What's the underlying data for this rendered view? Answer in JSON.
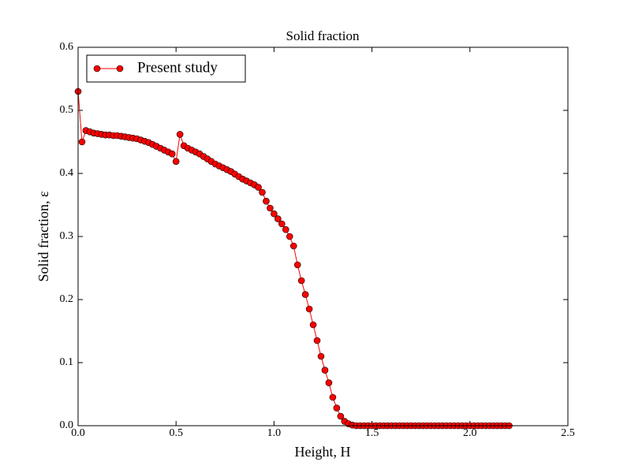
{
  "chart_data": {
    "type": "line",
    "title": "Solid fraction",
    "x_label": "Height, H",
    "y_label": "Solid fraction, ε",
    "x": [
      0,
      0.02,
      0.04,
      0.06,
      0.08,
      0.1,
      0.12,
      0.14,
      0.16,
      0.18,
      0.2,
      0.22,
      0.24,
      0.26,
      0.28,
      0.3,
      0.32,
      0.34,
      0.36,
      0.38,
      0.4,
      0.42,
      0.44,
      0.46,
      0.48,
      0.5,
      0.52,
      0.54,
      0.56,
      0.58,
      0.6,
      0.62,
      0.64,
      0.66,
      0.68,
      0.7,
      0.72,
      0.74,
      0.76,
      0.78,
      0.8,
      0.82,
      0.84,
      0.86,
      0.88,
      0.9,
      0.92,
      0.94,
      0.96,
      0.98,
      1,
      1.02,
      1.04,
      1.06,
      1.08,
      1.1,
      1.12,
      1.14,
      1.16,
      1.18,
      1.2,
      1.22,
      1.24,
      1.26,
      1.28,
      1.3,
      1.32,
      1.34,
      1.36,
      1.38,
      1.4,
      1.42,
      1.44,
      1.46,
      1.48,
      1.5,
      1.52,
      1.54,
      1.56,
      1.58,
      1.6,
      1.62,
      1.64,
      1.66,
      1.68,
      1.7,
      1.72,
      1.74,
      1.76,
      1.78,
      1.8,
      1.82,
      1.84,
      1.86,
      1.88,
      1.9,
      1.92,
      1.94,
      1.96,
      1.98,
      2,
      2.02,
      2.04,
      2.06,
      2.08,
      2.1,
      2.12,
      2.14,
      2.16,
      2.18,
      2.2
    ],
    "series": [
      {
        "name": "Present study",
        "color": "#ff0000",
        "values": [
          0.53,
          0.45,
          0.468,
          0.466,
          0.464,
          0.463,
          0.462,
          0.461,
          0.461,
          0.46,
          0.46,
          0.459,
          0.458,
          0.457,
          0.456,
          0.455,
          0.453,
          0.451,
          0.449,
          0.446,
          0.443,
          0.44,
          0.437,
          0.434,
          0.431,
          0.419,
          0.462,
          0.444,
          0.44,
          0.437,
          0.434,
          0.431,
          0.427,
          0.423,
          0.419,
          0.415,
          0.412,
          0.409,
          0.406,
          0.403,
          0.399,
          0.395,
          0.391,
          0.388,
          0.385,
          0.382,
          0.378,
          0.37,
          0.356,
          0.345,
          0.336,
          0.328,
          0.32,
          0.311,
          0.3,
          0.285,
          0.255,
          0.23,
          0.208,
          0.185,
          0.16,
          0.135,
          0.11,
          0.088,
          0.068,
          0.045,
          0.028,
          0.015,
          0.007,
          0.003,
          0.001,
          0,
          0,
          0,
          0,
          0,
          0,
          0,
          0,
          0,
          0,
          0,
          0,
          0,
          0,
          0,
          0,
          0,
          0,
          0,
          0,
          0,
          0,
          0,
          0,
          0,
          0,
          0,
          0,
          0,
          0,
          0,
          0,
          0,
          0,
          0,
          0,
          0,
          0,
          0,
          0
        ]
      }
    ],
    "xlim": [
      0,
      2.5
    ],
    "xticks": [
      {
        "value": 0,
        "label": "0.0"
      },
      {
        "value": 0.5,
        "label": "0.5"
      },
      {
        "value": 1,
        "label": "1.0"
      },
      {
        "value": 1.5,
        "label": "1.5"
      },
      {
        "value": 2,
        "label": "2.0"
      },
      {
        "value": 2.5,
        "label": "2.5"
      }
    ],
    "ylim": [
      0,
      0.6
    ],
    "yticks": [
      {
        "value": 0,
        "label": "0.0"
      },
      {
        "value": 0.1,
        "label": "0.1"
      },
      {
        "value": 0.2,
        "label": "0.2"
      },
      {
        "value": 0.3,
        "label": "0.3"
      },
      {
        "value": 0.4,
        "label": "0.4"
      },
      {
        "value": 0.5,
        "label": "0.5"
      },
      {
        "value": 0.6,
        "label": "0.6"
      }
    ],
    "grid": false,
    "legend": "upper left"
  }
}
